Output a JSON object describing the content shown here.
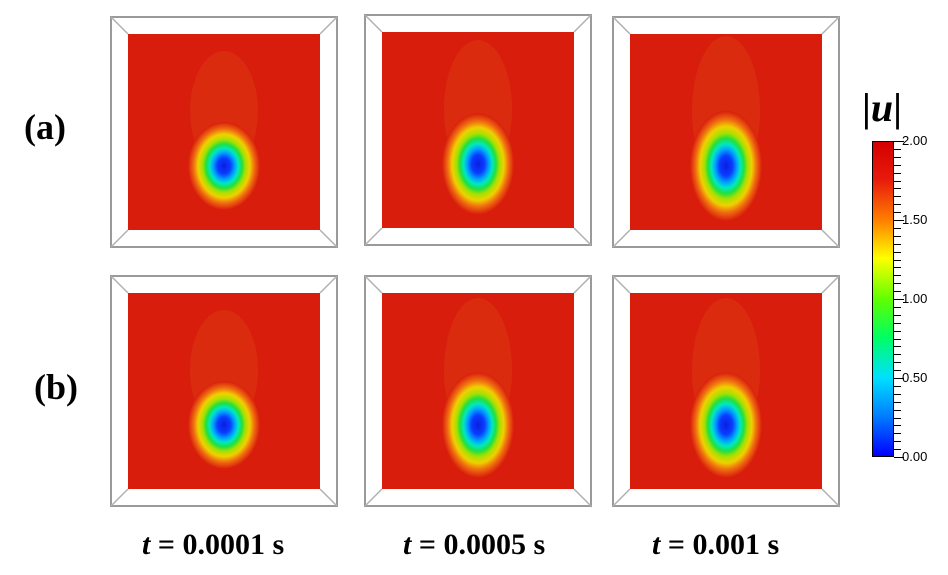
{
  "rows": [
    {
      "label": "(a)",
      "stretch": [
        1.0,
        1.15,
        1.25
      ]
    },
    {
      "label": "(b)",
      "stretch": [
        1.0,
        1.2,
        1.2
      ]
    }
  ],
  "time_labels": [
    {
      "var": "t",
      "rest": " = 0.0001 s"
    },
    {
      "var": "t",
      "rest": " = 0.0005 s"
    },
    {
      "var": "t",
      "rest": " = 0.001 s"
    }
  ],
  "colorbar": {
    "title_bar": "|",
    "title_var": "u",
    "min": 0.0,
    "max": 2.0,
    "tick_labels": [
      "2.00",
      "1.50",
      "1.00",
      "0.50",
      "0.00"
    ],
    "colors": [
      "#0000ff",
      "#0080ff",
      "#00e0ff",
      "#00ff60",
      "#60ff00",
      "#ffff00",
      "#ff8000",
      "#e81a0c",
      "#d40000"
    ],
    "background_color": "#d81d0c"
  }
}
